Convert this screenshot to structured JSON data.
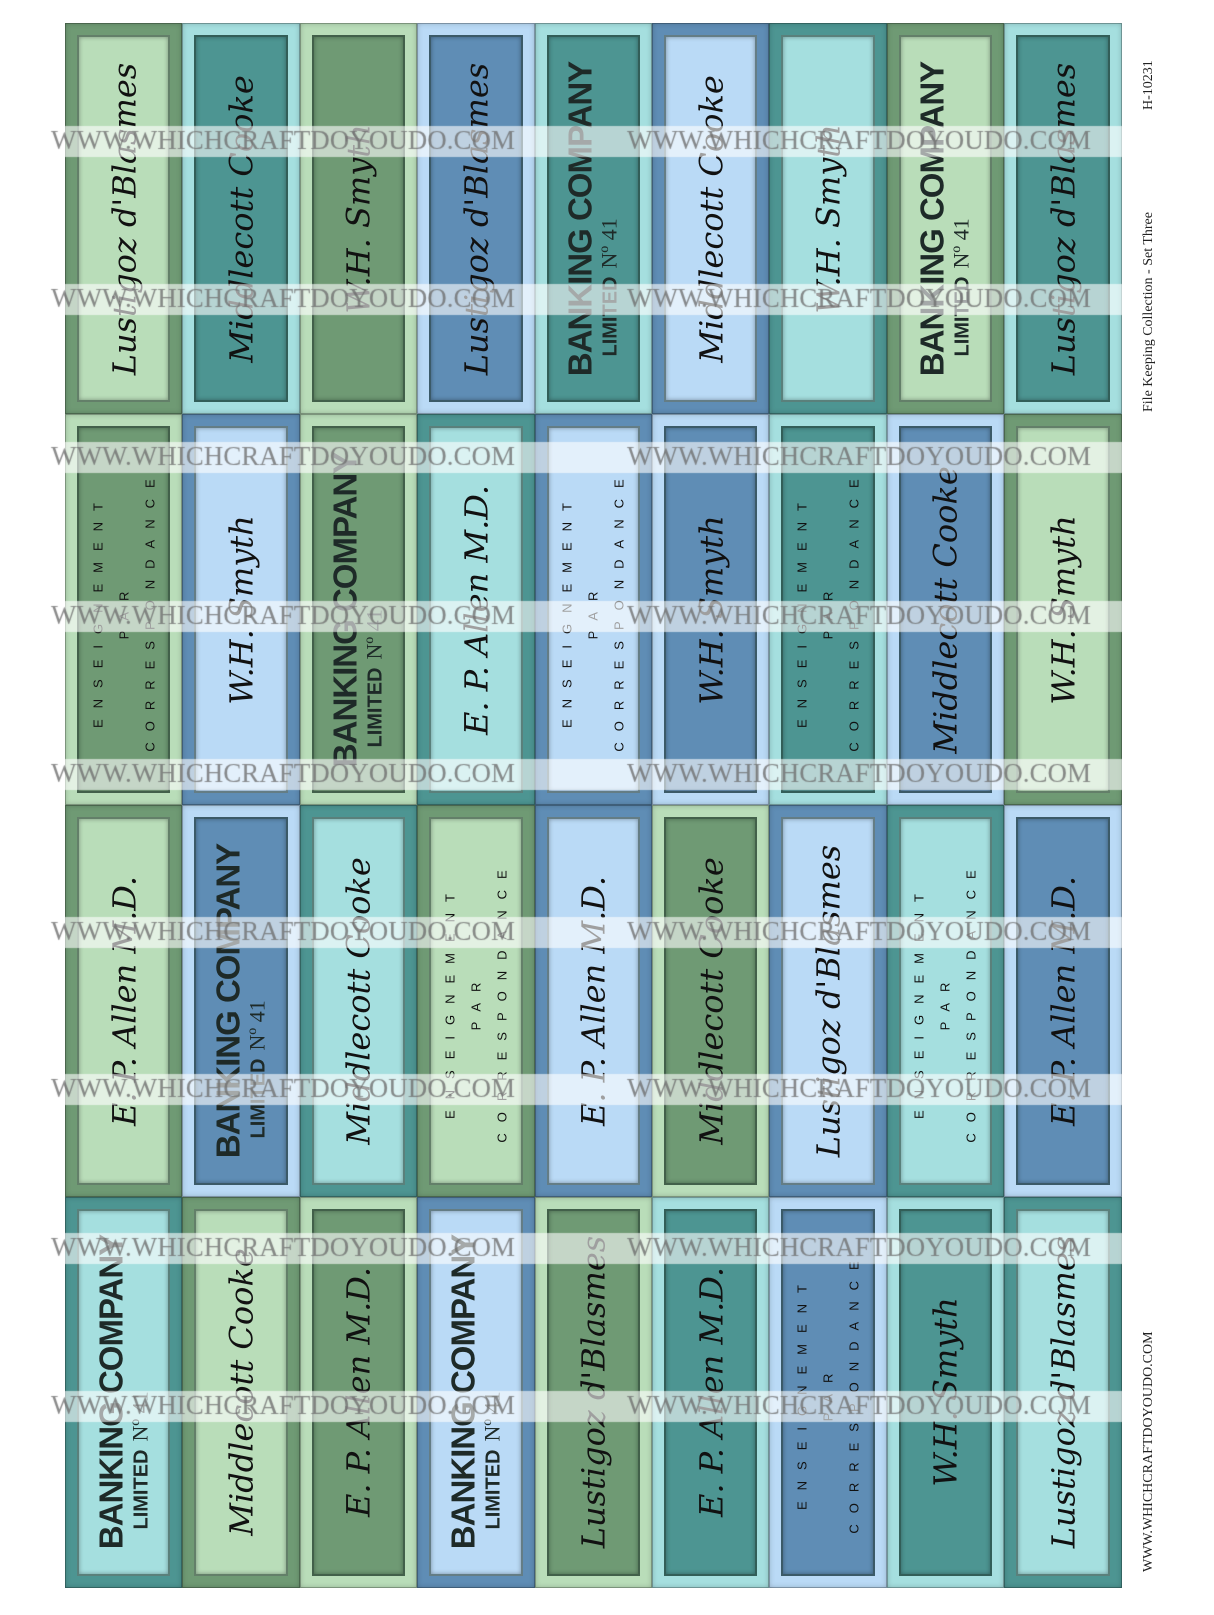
{
  "palette": {
    "G": "#6f9a74",
    "LG": "#b9ddb9",
    "T": "#4d9592",
    "LC": "#a5dfdf",
    "B": "#5f8db5",
    "LB": "#badaf6"
  },
  "labels": {
    "banking": {
      "line1": "BANKING COMPANY",
      "line2": "LIMITED",
      "number": "Nº 41"
    },
    "enseignement": {
      "line1": "ENSEIGNEMENT",
      "line2": "PAR",
      "line3": "CORRESPONDANCE"
    },
    "middlecott": {
      "text": "Middlecott Cooke"
    },
    "allen": {
      "text": "E. P. Allen M.D."
    },
    "lustigoz": {
      "text": "Lustigoz d'Blasmes"
    },
    "wh": {
      "text": "W.H. Smyth"
    }
  },
  "grid": [
    [
      [
        "lustigoz",
        "LG",
        "G"
      ],
      [
        "middlecott",
        "T",
        "LC"
      ],
      [
        "wh",
        "G",
        "LG"
      ],
      [
        "lustigoz",
        "B",
        "LB"
      ],
      [
        "banking",
        "T",
        "LC"
      ],
      [
        "middlecott",
        "LB",
        "B"
      ],
      [
        "wh",
        "LC",
        "T"
      ],
      [
        "banking",
        "LG",
        "G"
      ],
      [
        "lustigoz",
        "T",
        "LC"
      ]
    ],
    [
      [
        "enseignement",
        "G",
        "LG"
      ],
      [
        "wh",
        "LB",
        "B"
      ],
      [
        "banking",
        "G",
        "LG"
      ],
      [
        "allen",
        "LC",
        "T"
      ],
      [
        "enseignement",
        "LB",
        "B"
      ],
      [
        "wh",
        "B",
        "LB"
      ],
      [
        "enseignement",
        "T",
        "LC"
      ],
      [
        "middlecott",
        "B",
        "LB"
      ],
      [
        "wh",
        "LG",
        "G"
      ]
    ],
    [
      [
        "allen",
        "LG",
        "G"
      ],
      [
        "banking",
        "B",
        "LB"
      ],
      [
        "middlecott",
        "LC",
        "T"
      ],
      [
        "enseignement",
        "LG",
        "G"
      ],
      [
        "allen",
        "LB",
        "B"
      ],
      [
        "middlecott",
        "G",
        "LG"
      ],
      [
        "lustigoz",
        "LB",
        "B"
      ],
      [
        "enseignement",
        "LC",
        "T"
      ],
      [
        "allen",
        "B",
        "LB"
      ]
    ],
    [
      [
        "banking",
        "LC",
        "T"
      ],
      [
        "middlecott",
        "LG",
        "G"
      ],
      [
        "allen",
        "G",
        "LG"
      ],
      [
        "banking",
        "LB",
        "B"
      ],
      [
        "lustigoz",
        "G",
        "LG"
      ],
      [
        "allen",
        "T",
        "LC"
      ],
      [
        "enseignement",
        "B",
        "LB"
      ],
      [
        "wh",
        "T",
        "LC"
      ],
      [
        "lustigoz",
        "LC",
        "T"
      ]
    ]
  ],
  "watermark": {
    "text": "WWW.WHICHCRAFTDOYOUDO.COM"
  },
  "side": {
    "collection": "File Keeping Collection - Set Three",
    "code": "H-10231",
    "website": "WWW.WHICHCRAFTDOYOUDO.COM"
  }
}
